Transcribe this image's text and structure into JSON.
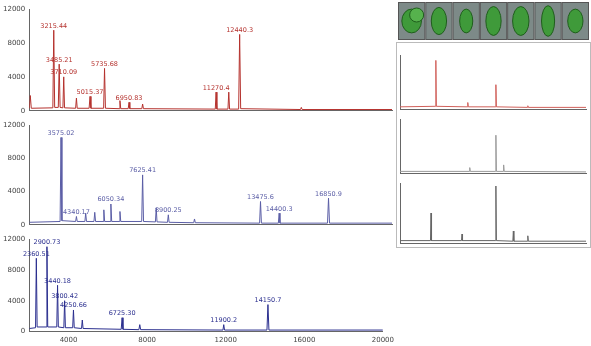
{
  "chart_data": [
    {
      "type": "line",
      "color": "#b5322e",
      "grid": false,
      "tick_labels": "y",
      "xlim": [
        2000,
        20000
      ],
      "xticks": [
        4000,
        8000,
        12000,
        16000,
        20000
      ],
      "ylim": [
        0,
        12000
      ],
      "yticks": [
        0,
        4000,
        8000,
        12000
      ],
      "x": [
        2000,
        2050,
        2100,
        3170,
        3215,
        3260,
        3440,
        3485,
        3530,
        3670,
        3710,
        3750,
        4300,
        4340,
        4380,
        4970,
        5015,
        5060,
        5690,
        5735,
        5780,
        6460,
        6500,
        6540,
        6910,
        6950,
        6990,
        7585,
        7625,
        7665,
        11230,
        11270,
        11310,
        11860,
        11900,
        11940,
        12390,
        12440,
        12490,
        15460,
        15500,
        15540,
        20000
      ],
      "values": [
        300,
        1800,
        300,
        350,
        9500,
        400,
        400,
        5500,
        400,
        350,
        4000,
        350,
        300,
        1500,
        300,
        300,
        1700,
        300,
        300,
        5000,
        300,
        250,
        1200,
        250,
        250,
        1000,
        250,
        250,
        800,
        250,
        200,
        2200,
        200,
        200,
        2200,
        200,
        200,
        9000,
        250,
        150,
        400,
        150,
        150
      ],
      "annotations": [
        {
          "x": 3215,
          "y": 9500,
          "text": "3215.44"
        },
        {
          "x": 3485,
          "y": 5500,
          "text": "3485.21"
        },
        {
          "x": 3710,
          "y": 4000,
          "text": "3710.09"
        },
        {
          "x": 5015,
          "y": 1700,
          "text": "5015.37"
        },
        {
          "x": 5735,
          "y": 5000,
          "text": "5735.68"
        },
        {
          "x": 6950,
          "y": 1000,
          "text": "6950.83"
        },
        {
          "x": 11270,
          "y": 2200,
          "text": "11270.4"
        },
        {
          "x": 12440,
          "y": 9000,
          "text": "12440.3"
        }
      ]
    },
    {
      "type": "line",
      "color": "#5b5ea6",
      "grid": false,
      "tick_labels": "y",
      "xlim": [
        2000,
        20000
      ],
      "xticks": [
        4000,
        8000,
        12000,
        16000,
        20000
      ],
      "ylim": [
        0,
        12000
      ],
      "yticks": [
        0,
        4000,
        8000,
        12000
      ],
      "x": [
        2000,
        3530,
        3575,
        3620,
        4300,
        4340,
        4380,
        4760,
        4800,
        4840,
        5210,
        5250,
        5290,
        5660,
        5700,
        5740,
        6010,
        6050,
        6090,
        6460,
        6500,
        6540,
        7580,
        7625,
        7670,
        8260,
        8300,
        8340,
        8860,
        8900,
        8940,
        10160,
        10200,
        10240,
        13430,
        13475,
        13520,
        14360,
        14400,
        14440,
        16800,
        16850,
        16900,
        20000
      ],
      "values": [
        300,
        400,
        10500,
        500,
        400,
        1000,
        400,
        400,
        1400,
        400,
        400,
        1500,
        400,
        400,
        1800,
        400,
        400,
        2500,
        400,
        400,
        1600,
        400,
        400,
        6000,
        400,
        350,
        2000,
        350,
        300,
        1200,
        300,
        250,
        700,
        250,
        200,
        2800,
        200,
        200,
        1400,
        200,
        200,
        3200,
        200,
        200
      ],
      "annotations": [
        {
          "x": 3575,
          "y": 10500,
          "text": "3575.02"
        },
        {
          "x": 4340,
          "y": 1000,
          "text": "4340.17"
        },
        {
          "x": 6050,
          "y": 2500,
          "text": "6050.34"
        },
        {
          "x": 7625,
          "y": 6000,
          "text": "7625.41"
        },
        {
          "x": 8900,
          "y": 1200,
          "text": "8900.25"
        },
        {
          "x": 13475,
          "y": 2800,
          "text": "13475.6"
        },
        {
          "x": 14400,
          "y": 1400,
          "text": "14400.3"
        },
        {
          "x": 16850,
          "y": 3200,
          "text": "16850.9"
        }
      ]
    },
    {
      "type": "line",
      "color": "#2b2f8f",
      "grid": false,
      "tick_labels": true,
      "xlim": [
        2000,
        20000
      ],
      "xticks": [
        4000,
        8000,
        12000,
        16000,
        20000
      ],
      "ylim": [
        0,
        12000
      ],
      "yticks": [
        0,
        4000,
        8000,
        12000
      ],
      "x": [
        2000,
        2320,
        2360,
        2400,
        2860,
        2900,
        2940,
        3400,
        3440,
        3480,
        3760,
        3800,
        3840,
        4210,
        4250,
        4290,
        4660,
        4700,
        4740,
        6680,
        6725,
        6770,
        7580,
        7625,
        7670,
        11860,
        11900,
        11940,
        14100,
        14150,
        14200,
        20000
      ],
      "values": [
        400,
        500,
        9500,
        600,
        600,
        11000,
        600,
        600,
        6000,
        600,
        500,
        4000,
        500,
        500,
        2800,
        500,
        400,
        1500,
        400,
        300,
        1800,
        300,
        250,
        900,
        250,
        200,
        900,
        200,
        200,
        3500,
        200,
        200
      ],
      "annotations": [
        {
          "x": 2360,
          "y": 9500,
          "text": "2360.51"
        },
        {
          "x": 2900,
          "y": 11000,
          "text": "2900.73"
        },
        {
          "x": 3440,
          "y": 6000,
          "text": "3440.18"
        },
        {
          "x": 3800,
          "y": 4000,
          "text": "3800.42"
        },
        {
          "x": 4250,
          "y": 2800,
          "text": "4250.66"
        },
        {
          "x": 6725,
          "y": 1800,
          "text": "6725.30"
        },
        {
          "x": 11900,
          "y": 900,
          "text": "11900.2"
        },
        {
          "x": 14150,
          "y": 3500,
          "text": "14150.7"
        }
      ]
    },
    {
      "type": "line",
      "color": "#d0605a",
      "grid": false,
      "tick_labels": false,
      "xlim": [
        2000,
        20000
      ],
      "ylim": [
        0,
        100
      ],
      "x": [
        2000,
        5420,
        5470,
        5520,
        8510,
        8560,
        8610,
        11230,
        11280,
        11330,
        14320,
        14370,
        14420,
        20000
      ],
      "values": [
        4,
        5,
        90,
        5,
        4,
        12,
        4,
        4,
        45,
        4,
        3,
        6,
        3,
        3
      ]
    },
    {
      "type": "line",
      "color": "#999999",
      "grid": false,
      "tick_labels": false,
      "xlim": [
        2000,
        20000
      ],
      "ylim": [
        0,
        100
      ],
      "x": [
        2000,
        8700,
        8750,
        8800,
        11230,
        11280,
        11330,
        11980,
        12030,
        12080,
        20000
      ],
      "values": [
        3,
        3,
        10,
        3,
        3,
        70,
        3,
        3,
        15,
        3,
        2
      ]
    },
    {
      "type": "line",
      "color": "#666666",
      "grid": false,
      "tick_labels": false,
      "xlim": [
        2000,
        20000
      ],
      "ylim": [
        0,
        100
      ],
      "x": [
        2000,
        4950,
        5000,
        5050,
        7950,
        8000,
        8050,
        11230,
        11280,
        11330,
        12920,
        12970,
        13020,
        14320,
        14370,
        14420,
        20000
      ],
      "values": [
        4,
        4,
        50,
        4,
        4,
        15,
        4,
        4,
        95,
        4,
        3,
        20,
        3,
        3,
        12,
        3,
        3
      ]
    }
  ]
}
